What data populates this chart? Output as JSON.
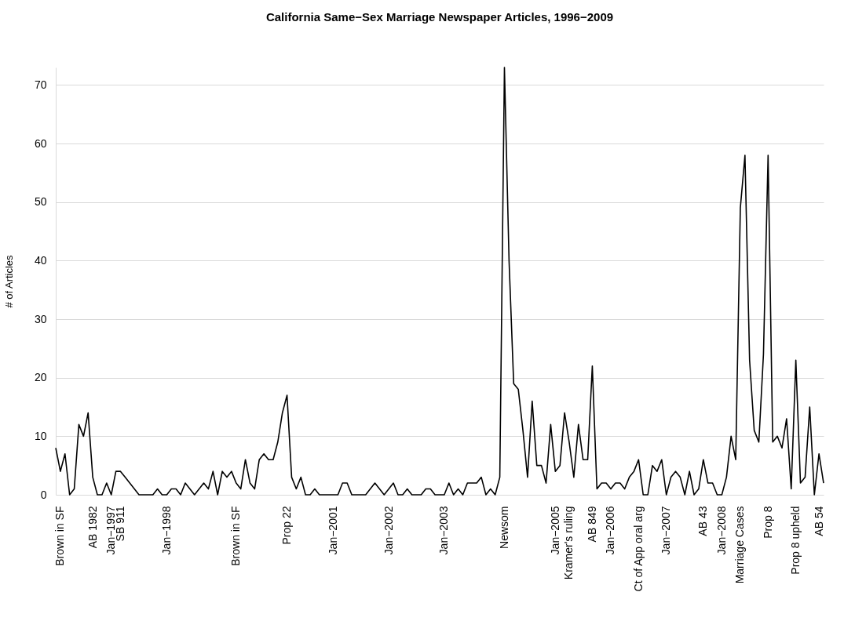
{
  "chart_data": {
    "type": "line",
    "title": "California Same−Sex Marriage Newspaper Articles, 1996−2009",
    "ylabel": "# of Articles",
    "categories": [
      null,
      "Brown in SF",
      null,
      null,
      null,
      null,
      null,
      null,
      "AB 1982",
      null,
      null,
      null,
      "Jan−1997",
      null,
      "SB 911",
      null,
      null,
      null,
      null,
      null,
      null,
      null,
      null,
      null,
      "Jan−1998",
      null,
      null,
      null,
      null,
      null,
      null,
      null,
      null,
      null,
      null,
      null,
      null,
      null,
      null,
      "Brown in SF",
      null,
      null,
      null,
      null,
      null,
      null,
      null,
      null,
      null,
      null,
      "Prop 22",
      null,
      null,
      null,
      null,
      null,
      null,
      null,
      null,
      null,
      "Jan−2001",
      null,
      null,
      null,
      null,
      null,
      null,
      null,
      null,
      null,
      null,
      null,
      "Jan−2002",
      null,
      null,
      null,
      null,
      null,
      null,
      null,
      null,
      null,
      null,
      null,
      "Jan−2003",
      null,
      null,
      null,
      null,
      null,
      null,
      null,
      null,
      null,
      null,
      null,
      null,
      "Newsom",
      null,
      null,
      null,
      null,
      null,
      null,
      null,
      null,
      null,
      null,
      "Jan−2005",
      null,
      null,
      "Kramer's ruling",
      null,
      null,
      null,
      null,
      "AB 849",
      null,
      null,
      null,
      "Jan−2006",
      null,
      null,
      null,
      null,
      null,
      "Ct of App oral arg",
      null,
      null,
      null,
      null,
      null,
      "Jan−2007",
      null,
      null,
      null,
      null,
      null,
      null,
      null,
      "AB 43",
      null,
      null,
      null,
      "Jan−2008",
      null,
      null,
      null,
      "Marriage Cases",
      null,
      null,
      null,
      null,
      null,
      "Prop 8",
      null,
      null,
      null,
      null,
      null,
      "Prop 8 upheld",
      null,
      null,
      null,
      null,
      "AB 54",
      null
    ],
    "series": [
      {
        "color": "#000000",
        "values": [
          8,
          4,
          7,
          0,
          1,
          12,
          10,
          14,
          3,
          0,
          0,
          2,
          0,
          4,
          4,
          3,
          2,
          1,
          0,
          0,
          0,
          0,
          1,
          0,
          0,
          1,
          1,
          0,
          2,
          1,
          0,
          1,
          2,
          1,
          4,
          0,
          4,
          3,
          4,
          2,
          1,
          6,
          2,
          1,
          6,
          7,
          6,
          6,
          9,
          14,
          17,
          3,
          1,
          3,
          0,
          0,
          1,
          0,
          0,
          0,
          0,
          0,
          2,
          2,
          0,
          0,
          0,
          0,
          1,
          2,
          1,
          0,
          1,
          2,
          0,
          0,
          1,
          0,
          0,
          0,
          1,
          1,
          0,
          0,
          0,
          2,
          0,
          1,
          0,
          2,
          2,
          2,
          3,
          0,
          1,
          0,
          3,
          73,
          40,
          19,
          18,
          11,
          3,
          16,
          5,
          5,
          2,
          12,
          4,
          5,
          14,
          9,
          3,
          12,
          6,
          6,
          22,
          1,
          2,
          2,
          1,
          2,
          2,
          1,
          3,
          4,
          6,
          0,
          0,
          5,
          4,
          6,
          0,
          3,
          4,
          3,
          0,
          4,
          0,
          1,
          6,
          2,
          2,
          0,
          0,
          3,
          10,
          6,
          49,
          58,
          23,
          11,
          9,
          24,
          58,
          9,
          10,
          8,
          13,
          1,
          23,
          2,
          3,
          15,
          0,
          7,
          2
        ]
      }
    ],
    "ylim": [
      0,
      73
    ],
    "yticks": [
      0,
      10,
      20,
      30,
      40,
      50,
      60,
      70
    ],
    "grid": "y",
    "legend": false,
    "marker": "none",
    "line_style": "solid"
  }
}
